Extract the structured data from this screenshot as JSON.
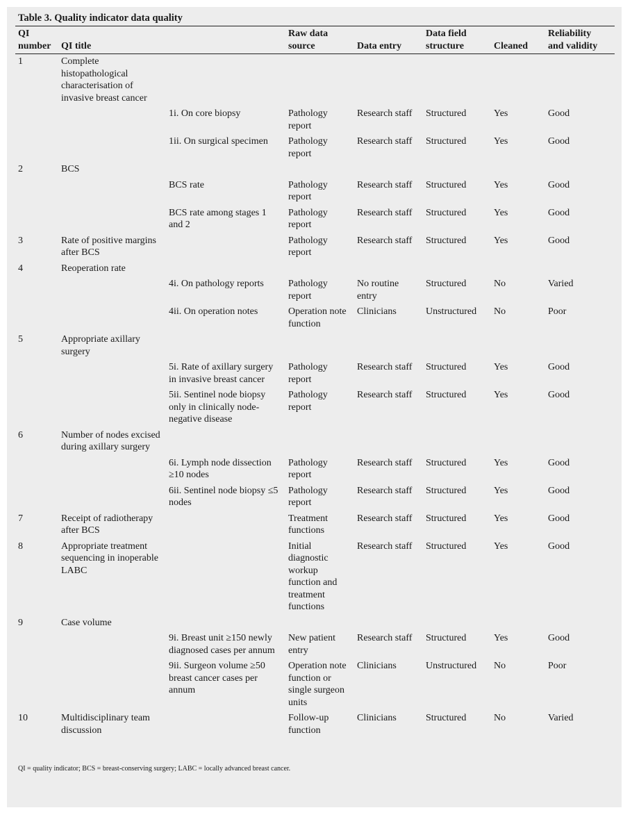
{
  "title": "Table 3. Quality indicator data quality",
  "table": {
    "header": [
      [
        "QI",
        "number"
      ],
      [
        "QI title"
      ],
      [],
      [
        "Raw data",
        "source"
      ],
      [
        "Data entry"
      ],
      [
        "Data field",
        "structure"
      ],
      [
        "Cleaned"
      ],
      [
        "Reliability",
        "and validity"
      ]
    ],
    "rows": [
      [
        "1",
        "Complete histopathological characterisation of invasive breast cancer",
        null,
        null,
        null,
        null,
        null,
        null
      ],
      [
        null,
        null,
        "1i. On core biopsy",
        "Pathology report",
        "Research staff",
        "Structured",
        "Yes",
        "Good"
      ],
      [
        null,
        null,
        "1ii. On surgical specimen",
        "Pathology report",
        "Research staff",
        "Structured",
        "Yes",
        "Good"
      ],
      [
        "2",
        "BCS",
        null,
        null,
        null,
        null,
        null,
        null
      ],
      [
        null,
        null,
        "BCS rate",
        "Pathology report",
        "Research staff",
        "Structured",
        "Yes",
        "Good"
      ],
      [
        null,
        null,
        "BCS rate among stages 1 and 2",
        "Pathology report",
        "Research staff",
        "Structured",
        "Yes",
        "Good"
      ],
      [
        "3",
        "Rate of positive margins after BCS",
        null,
        "Pathology report",
        "Research staff",
        "Structured",
        "Yes",
        "Good"
      ],
      [
        "4",
        "Reoperation rate",
        null,
        null,
        null,
        null,
        null,
        null
      ],
      [
        null,
        null,
        "4i. On pathology reports",
        "Pathology report",
        "No routine entry",
        "Structured",
        "No",
        "Varied"
      ],
      [
        null,
        null,
        "4ii. On operation notes",
        "Operation note function",
        "Clinicians",
        "Unstructured",
        "No",
        "Poor"
      ],
      [
        "5",
        "Appropriate axillary surgery",
        null,
        null,
        null,
        null,
        null,
        null
      ],
      [
        null,
        null,
        "5i. Rate of axillary surgery in invasive breast cancer",
        "Pathology report",
        "Research staff",
        "Structured",
        "Yes",
        "Good"
      ],
      [
        null,
        null,
        "5ii. Sentinel node biopsy only in clinically node-negative disease",
        "Pathology report",
        "Research staff",
        "Structured",
        "Yes",
        "Good"
      ],
      [
        "6",
        "Number of nodes excised during axillary surgery",
        null,
        null,
        null,
        null,
        null,
        null
      ],
      [
        null,
        null,
        "6i. Lymph node dissection ≥10 nodes",
        "Pathology report",
        "Research staff",
        "Structured",
        "Yes",
        "Good"
      ],
      [
        null,
        null,
        "6ii. Sentinel node biopsy ≤5 nodes",
        "Pathology report",
        "Research staff",
        "Structured",
        "Yes",
        "Good"
      ],
      [
        "7",
        "Receipt of radiotherapy after BCS",
        null,
        "Treatment functions",
        "Research staff",
        "Structured",
        "Yes",
        "Good"
      ],
      [
        "8",
        "Appropriate treatment sequencing in inoperable LABC",
        null,
        "Initial diagnostic workup function and treatment functions",
        "Research staff",
        "Structured",
        "Yes",
        "Good"
      ],
      [
        "9",
        "Case volume",
        null,
        null,
        null,
        null,
        null,
        null
      ],
      [
        null,
        null,
        "9i. Breast unit ≥150 newly diagnosed cases per annum",
        "New patient entry",
        "Research staff",
        "Structured",
        "Yes",
        "Good"
      ],
      [
        null,
        null,
        "9ii. Surgeon volume ≥50 breast cancer cases per annum",
        "Operation note function or single surgeon units",
        "Clinicians",
        "Unstructured",
        "No",
        "Poor"
      ],
      [
        "10",
        "Multidisciplinary team discussion",
        null,
        "Follow-up function",
        "Clinicians",
        "Structured",
        "No",
        "Varied"
      ]
    ]
  },
  "footnote": "QI = quality indicator; BCS = breast-conserving surgery; LABC = locally advanced breast cancer."
}
